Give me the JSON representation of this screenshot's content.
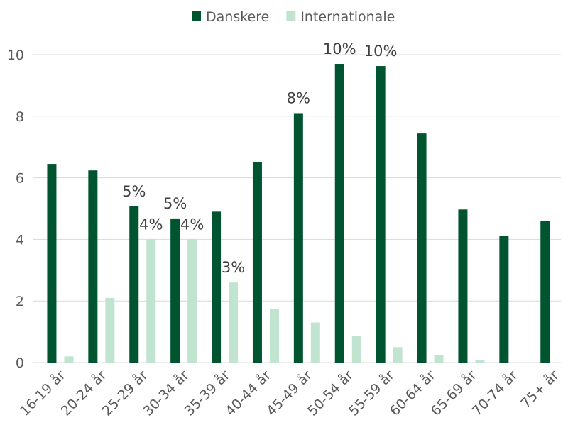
{
  "chart_data": {
    "type": "bar",
    "categories": [
      "16-19 år",
      "20-24 år",
      "25-29 år",
      "30-34 år",
      "35-39 år",
      "40-44 år",
      "45-49 år",
      "50-54 år",
      "55-59 år",
      "60-64 år",
      "65-69 år",
      "70-74 år",
      "75+ år"
    ],
    "series": [
      {
        "name": "Danskere",
        "color": "#00542f",
        "values": [
          6.45,
          6.24,
          5.07,
          4.68,
          4.9,
          6.5,
          8.1,
          9.7,
          9.63,
          7.44,
          4.97,
          4.12,
          4.6
        ],
        "value_labels": [
          null,
          null,
          "5%",
          "5%",
          null,
          null,
          "8%",
          "10%",
          "10%",
          null,
          null,
          null,
          null
        ]
      },
      {
        "name": "Internationale",
        "color": "#c0e4cf",
        "values": [
          0.2,
          2.1,
          4.0,
          4.0,
          2.6,
          1.73,
          1.3,
          0.87,
          0.5,
          0.25,
          0.07,
          0,
          0
        ],
        "value_labels": [
          null,
          null,
          "4%",
          "4%",
          "3%",
          null,
          null,
          null,
          null,
          null,
          null,
          null,
          null
        ]
      }
    ],
    "ylim": [
      0,
      10
    ],
    "yticks": [
      0,
      2,
      4,
      6,
      8,
      10
    ],
    "grid": true,
    "legend": "top"
  }
}
